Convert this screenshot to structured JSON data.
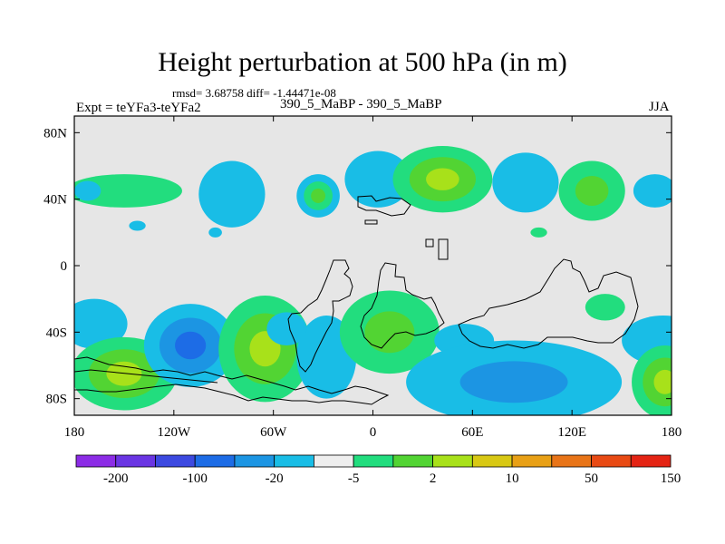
{
  "chart_data": {
    "type": "contour-map",
    "title": "Height perturbation at 500 hPa (in m)",
    "stats_label": "rmsd= 3.68758 diff= -1.44471e-08",
    "rmsd": 3.68758,
    "diff": -1.44471e-08,
    "experiment_label": "Expt = teYFa3-teYFa2",
    "case_label": "390_5_MaBP - 390_5_MaBP",
    "season": "JJA",
    "x_range": [
      -180,
      180
    ],
    "y_range": [
      -90,
      90
    ],
    "x_ticks": [
      {
        "value": -180,
        "label": "180"
      },
      {
        "value": -120,
        "label": "120W"
      },
      {
        "value": -60,
        "label": "60W"
      },
      {
        "value": 0,
        "label": "0"
      },
      {
        "value": 60,
        "label": "60E"
      },
      {
        "value": 120,
        "label": "120E"
      },
      {
        "value": 180,
        "label": "180"
      }
    ],
    "y_ticks": [
      {
        "value": 80,
        "label": "80N"
      },
      {
        "value": 40,
        "label": "40N"
      },
      {
        "value": 0,
        "label": "0"
      },
      {
        "value": -40,
        "label": "40S"
      },
      {
        "value": -80,
        "label": "80S"
      }
    ],
    "colorbar": {
      "colors": [
        "#8c2ce6",
        "#6a35e3",
        "#3c49e0",
        "#1d6ce6",
        "#1c95e3",
        "#19bde6",
        "#eeeeee",
        "#22dd7e",
        "#52d433",
        "#a8e11a",
        "#d8c814",
        "#e8a016",
        "#e87418",
        "#e84a14",
        "#e42414"
      ],
      "labels": [
        {
          "text": "-200",
          "after_index": 0
        },
        {
          "text": "-100",
          "after_index": 2
        },
        {
          "text": "-20",
          "after_index": 4
        },
        {
          "text": "-5",
          "after_index": 6
        },
        {
          "text": "2",
          "after_index": 8
        },
        {
          "text": "10",
          "after_index": 10
        },
        {
          "text": "50",
          "after_index": 12
        },
        {
          "text": "150",
          "after_index": 14
        }
      ]
    },
    "regions": [
      {
        "lon": -85,
        "lat": 43,
        "rlon": 20,
        "rlat": 20,
        "bins": [
          5
        ]
      },
      {
        "lon": -33,
        "lat": 42,
        "rlon": 13,
        "rlat": 13,
        "bins": [
          5,
          7,
          8
        ]
      },
      {
        "lon": 3,
        "lat": 52,
        "rlon": 20,
        "rlat": 17,
        "bins": [
          5
        ]
      },
      {
        "lon": 42,
        "lat": 52,
        "rlon": 30,
        "rlat": 20,
        "bins": [
          7,
          8,
          9
        ]
      },
      {
        "lon": 92,
        "lat": 50,
        "rlon": 20,
        "rlat": 18,
        "bins": [
          5
        ]
      },
      {
        "lon": 132,
        "lat": 45,
        "rlon": 20,
        "rlat": 18,
        "bins": [
          7,
          8
        ]
      },
      {
        "lon": 170,
        "lat": 45,
        "rlon": 13,
        "rlat": 10,
        "bins": [
          5
        ]
      },
      {
        "lon": -150,
        "lat": 45,
        "rlon": 35,
        "rlat": 10,
        "bins": [
          7
        ]
      },
      {
        "lon": -172,
        "lat": 45,
        "rlon": 8,
        "rlat": 6,
        "bins": [
          5
        ]
      },
      {
        "lon": -142,
        "lat": 24,
        "rlon": 5,
        "rlat": 3,
        "bins": [
          5
        ]
      },
      {
        "lon": -95,
        "lat": 20,
        "rlon": 4,
        "rlat": 3,
        "bins": [
          5
        ]
      },
      {
        "lon": 100,
        "lat": 20,
        "rlon": 5,
        "rlat": 3,
        "bins": [
          7
        ]
      },
      {
        "lon": -168,
        "lat": -35,
        "rlon": 20,
        "rlat": 15,
        "bins": [
          5
        ]
      },
      {
        "lon": -150,
        "lat": -65,
        "rlon": 32,
        "rlat": 22,
        "bins": [
          7,
          8,
          9
        ]
      },
      {
        "lon": -110,
        "lat": -48,
        "rlon": 28,
        "rlat": 25,
        "bins": [
          5,
          4,
          3
        ]
      },
      {
        "lon": -65,
        "lat": -50,
        "rlon": 28,
        "rlat": 32,
        "bins": [
          7,
          8,
          9
        ]
      },
      {
        "lon": -28,
        "lat": -55,
        "rlon": 18,
        "rlat": 25,
        "bins": [
          5
        ]
      },
      {
        "lon": -52,
        "lat": -38,
        "rlon": 12,
        "rlat": 10,
        "bins": [
          5
        ]
      },
      {
        "lon": 10,
        "lat": -40,
        "rlon": 30,
        "rlat": 25,
        "bins": [
          7,
          8
        ]
      },
      {
        "lon": 55,
        "lat": -45,
        "rlon": 18,
        "rlat": 10,
        "bins": [
          5
        ]
      },
      {
        "lon": 85,
        "lat": -70,
        "rlon": 65,
        "rlat": 25,
        "bins": [
          5,
          4
        ]
      },
      {
        "lon": 140,
        "lat": -25,
        "rlon": 12,
        "rlat": 8,
        "bins": [
          7
        ]
      },
      {
        "lon": 175,
        "lat": -45,
        "rlon": 25,
        "rlat": 15,
        "bins": [
          5
        ]
      },
      {
        "lon": 176,
        "lat": -70,
        "rlon": 20,
        "rlat": 22,
        "bins": [
          7,
          8,
          9
        ]
      }
    ]
  }
}
